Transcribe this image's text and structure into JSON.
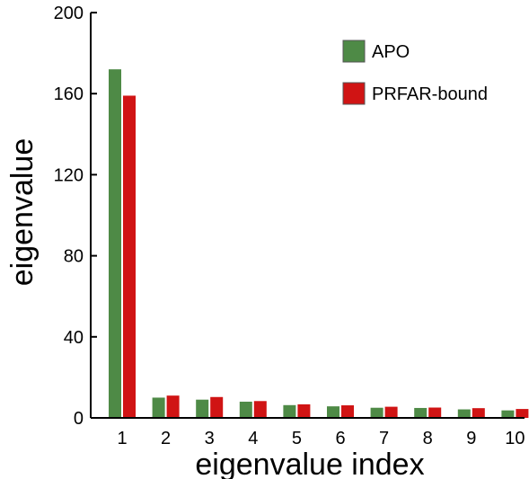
{
  "chart_data": {
    "type": "bar",
    "xlabel": "eigenvalue index",
    "ylabel": "eigenvalue",
    "ylim": [
      0,
      200
    ],
    "yticks": [
      "0",
      "40",
      "80",
      "120",
      "160",
      "200"
    ],
    "categories": [
      "1",
      "2",
      "3",
      "4",
      "5",
      "6",
      "7",
      "8",
      "9",
      "10"
    ],
    "series": [
      {
        "name": "APO",
        "color": "#4e8a46",
        "values": [
          172,
          10,
          9,
          8,
          6.3,
          5.7,
          5,
          4.9,
          4.2,
          3.7
        ]
      },
      {
        "name": "PRFAR-bound",
        "color": "#d01414",
        "values": [
          159,
          11,
          10.3,
          8.3,
          6.7,
          6.2,
          5.5,
          5.1,
          4.8,
          4.4
        ]
      }
    ],
    "legend_position": "top-right",
    "grid": false
  }
}
